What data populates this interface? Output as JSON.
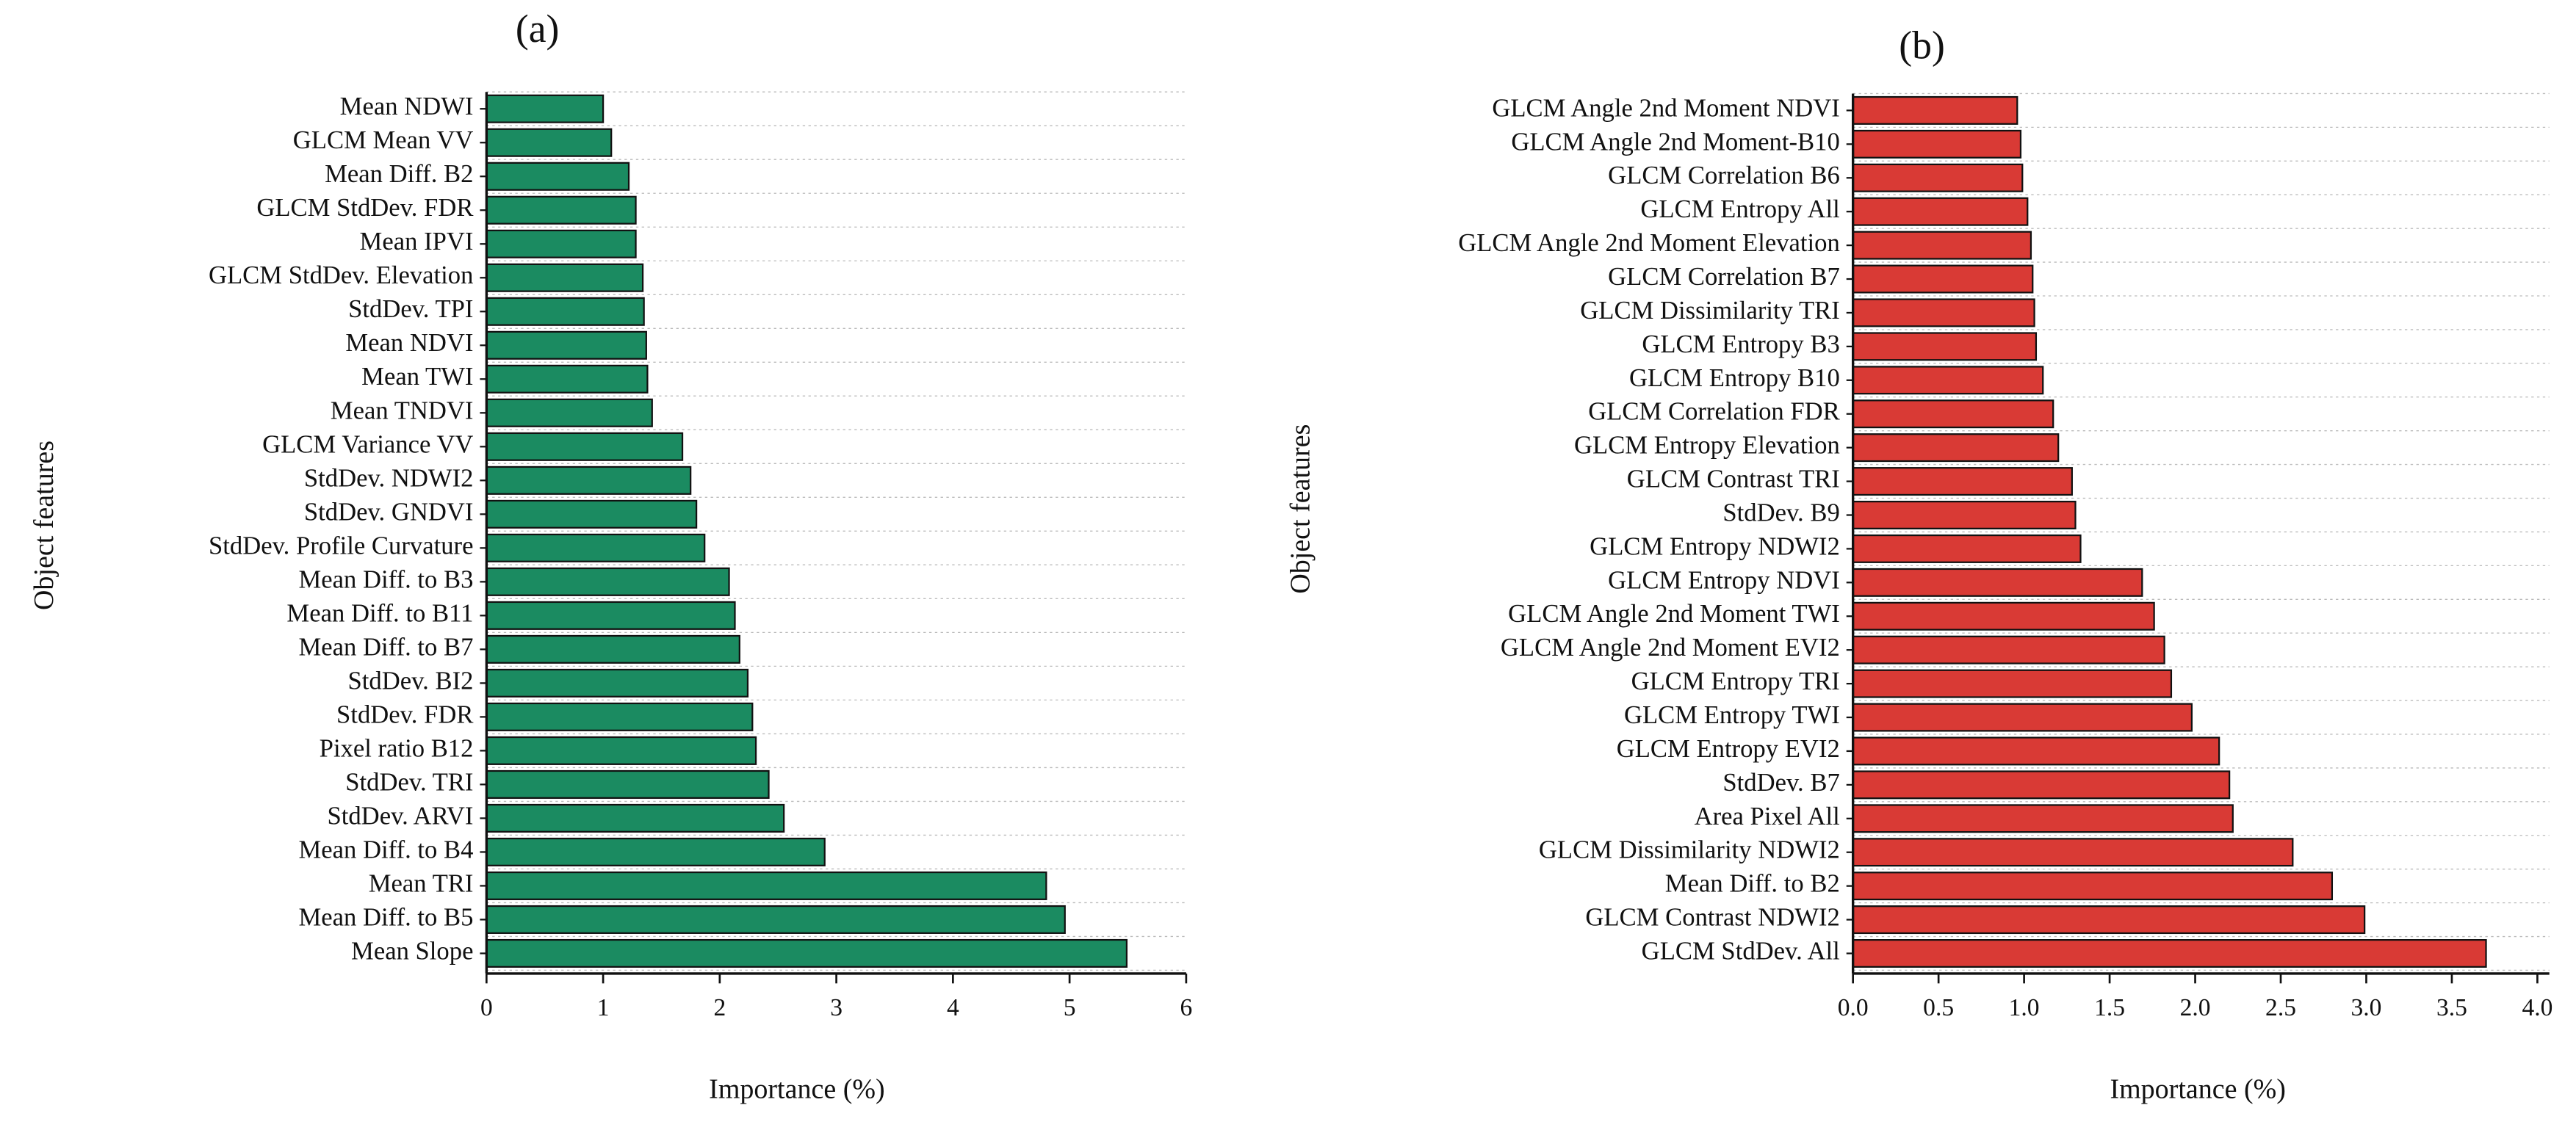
{
  "chart_data": [
    {
      "type": "bar",
      "orientation": "horizontal",
      "title": "(a)",
      "ylabel": "Object features",
      "xlabel": "Importance (%)",
      "color": "#1b8b61",
      "categories": [
        "Mean NDWI",
        "GLCM Mean VV",
        "Mean Diff. B2",
        "GLCM StdDev. FDR",
        "Mean IPVI",
        "GLCM StdDev. Elevation",
        "StdDev. TPI",
        "Mean NDVI",
        "Mean TWI",
        "Mean TNDVI",
        "GLCM Variance VV",
        "StdDev. NDWI2",
        "StdDev. GNDVI",
        "StdDev. Profile Curvature",
        "Mean Diff. to B3",
        "Mean Diff. to B11",
        "Mean Diff. to B7",
        "StdDev. BI2",
        "StdDev. FDR",
        "Pixel ratio B12",
        "StdDev. TRI",
        "StdDev. ARVI",
        "Mean Diff. to B4",
        "Mean TRI",
        "Mean Diff. to B5",
        "Mean Slope"
      ],
      "values": [
        1.0,
        1.07,
        1.22,
        1.28,
        1.28,
        1.34,
        1.35,
        1.37,
        1.38,
        1.42,
        1.68,
        1.75,
        1.8,
        1.87,
        2.08,
        2.13,
        2.17,
        2.24,
        2.28,
        2.31,
        2.42,
        2.55,
        2.9,
        4.8,
        4.96,
        5.49
      ],
      "xlim": [
        0,
        6
      ],
      "xticks": [
        0,
        1,
        2,
        3,
        4,
        5,
        6
      ]
    },
    {
      "type": "bar",
      "orientation": "horizontal",
      "title": "(b)",
      "ylabel": "Object features",
      "xlabel": "Importance (%)",
      "color": "#d93a35",
      "categories": [
        "GLCM Angle 2nd Moment NDVI",
        "GLCM Angle 2nd Moment-B10",
        "GLCM Correlation B6",
        "GLCM Entropy All",
        "GLCM Angle 2nd Moment Elevation",
        "GLCM Correlation B7",
        "GLCM Dissimilarity TRI",
        "GLCM Entropy B3",
        "GLCM Entropy B10",
        "GLCM Correlation FDR",
        "GLCM Entropy Elevation",
        "GLCM Contrast TRI",
        "StdDev. B9",
        "GLCM Entropy NDWI2",
        "GLCM Entropy NDVI",
        "GLCM Angle 2nd Moment TWI",
        "GLCM Angle 2nd Moment EVI2",
        "GLCM Entropy TRI",
        "GLCM Entropy TWI",
        "GLCM Entropy EVI2",
        "StdDev. B7",
        "Area Pixel All",
        "GLCM Dissimilarity NDWI2",
        "Mean Diff. to B2",
        "GLCM Contrast NDWI2",
        "GLCM StdDev. All"
      ],
      "values": [
        0.96,
        0.98,
        0.99,
        1.02,
        1.04,
        1.05,
        1.06,
        1.07,
        1.11,
        1.17,
        1.2,
        1.28,
        1.3,
        1.33,
        1.69,
        1.76,
        1.82,
        1.86,
        1.98,
        2.14,
        2.2,
        2.22,
        2.57,
        2.8,
        2.99,
        3.7
      ],
      "xlim": [
        0,
        4.07
      ],
      "xticks": [
        {
          "value": 0,
          "label": "0.0"
        },
        0.5,
        {
          "value": 1,
          "label": "1.0"
        },
        1.5,
        {
          "value": 2,
          "label": "2.0"
        },
        2.5,
        {
          "value": 3,
          "label": "3.0"
        },
        3.5,
        {
          "value": 4,
          "label": "4.0"
        }
      ]
    }
  ]
}
